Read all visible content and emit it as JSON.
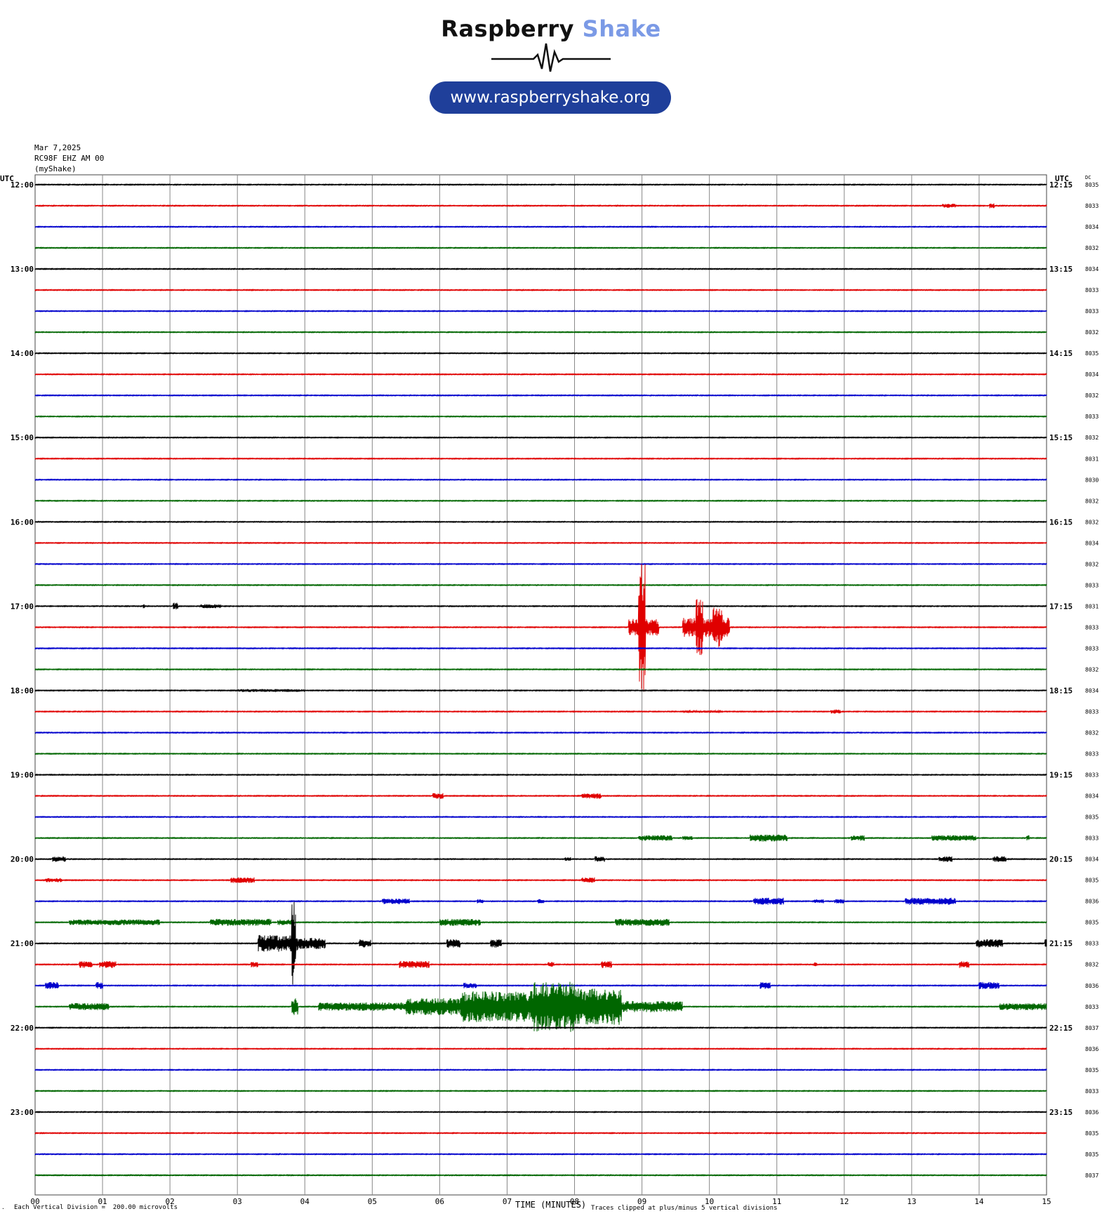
{
  "logo": {
    "brand_word1": "Raspberry",
    "brand_word2": "Shake",
    "url": "www.raspberryshake.org",
    "colors": {
      "word1": "#111111",
      "word2": "#7b9ae6",
      "badge": "#1f3f9a"
    }
  },
  "header": {
    "date": "Mar 7,2025",
    "station": "RC98F EHZ AM 00",
    "network": "(myShake)"
  },
  "footer": {
    "scale_note": "Each Vertical Division =  200.00 microvolts",
    "clip_note": "Traces clipped at plus/minus 5 vertical divisions"
  },
  "chart_data": {
    "type": "line",
    "subtype": "helicorder",
    "left_axis_title": "UTC",
    "right_axis_title": "UTC",
    "dc_title": "DC",
    "xlabel": "TIME (MINUTES)",
    "x_ticks": [
      "00",
      "01",
      "02",
      "03",
      "04",
      "05",
      "06",
      "07",
      "08",
      "09",
      "10",
      "11",
      "12",
      "13",
      "14",
      "15"
    ],
    "xlim": [
      0,
      15
    ],
    "trace_colors": [
      "#000000",
      "#e00000",
      "#0000cc",
      "#006600"
    ],
    "grid": true,
    "left_hour_labels": [
      "12:00",
      "13:00",
      "14:00",
      "15:00",
      "16:00",
      "17:00",
      "18:00",
      "19:00",
      "20:00",
      "21:00",
      "22:00",
      "23:00"
    ],
    "right_hour_labels": [
      "12:15",
      "13:15",
      "14:15",
      "15:15",
      "16:15",
      "17:15",
      "18:15",
      "19:15",
      "20:15",
      "21:15",
      "22:15",
      "23:15"
    ],
    "dc_values": [
      "8035",
      "8033",
      "8034",
      "8032",
      "8034",
      "8033",
      "8033",
      "8032",
      "8035",
      "8034",
      "8032",
      "8033",
      "8032",
      "8031",
      "8030",
      "8032",
      "8032",
      "8034",
      "8032",
      "8033",
      "8031",
      "8033",
      "8033",
      "8032",
      "8034",
      "8033",
      "8032",
      "8033",
      "8033",
      "8034",
      "8035",
      "8033",
      "8034",
      "8035",
      "8036",
      "8035",
      "8033",
      "8032",
      "8036",
      "8033",
      "8037",
      "8036",
      "8035",
      "8033",
      "8036",
      "8035",
      "8035",
      "8037"
    ],
    "noise_level": 0.6,
    "events": [
      {
        "line": 1,
        "start": 13.45,
        "end": 13.65,
        "amp": 3
      },
      {
        "line": 1,
        "start": 14.15,
        "end": 14.22,
        "amp": 4
      },
      {
        "line": 20,
        "start": 1.6,
        "end": 1.63,
        "amp": 3
      },
      {
        "line": 20,
        "start": 2.05,
        "end": 2.12,
        "amp": 5
      },
      {
        "line": 20,
        "start": 2.45,
        "end": 2.75,
        "amp": 3
      },
      {
        "line": 21,
        "start": 8.95,
        "end": 9.05,
        "amp": 95
      },
      {
        "line": 21,
        "start": 8.8,
        "end": 9.25,
        "amp": 12
      },
      {
        "line": 21,
        "start": 9.6,
        "end": 10.3,
        "amp": 14
      },
      {
        "line": 21,
        "start": 9.8,
        "end": 9.9,
        "amp": 40
      },
      {
        "line": 21,
        "start": 10.05,
        "end": 10.2,
        "amp": 30
      },
      {
        "line": 24,
        "start": 3.0,
        "end": 4.0,
        "amp": 2
      },
      {
        "line": 25,
        "start": 9.6,
        "end": 10.2,
        "amp": 1.5
      },
      {
        "line": 25,
        "start": 11.8,
        "end": 11.95,
        "amp": 3
      },
      {
        "line": 29,
        "start": 5.9,
        "end": 6.05,
        "amp": 4
      },
      {
        "line": 29,
        "start": 8.1,
        "end": 8.4,
        "amp": 4
      },
      {
        "line": 31,
        "start": 8.95,
        "end": 9.45,
        "amp": 4
      },
      {
        "line": 31,
        "start": 9.6,
        "end": 9.75,
        "amp": 3
      },
      {
        "line": 31,
        "start": 10.6,
        "end": 11.15,
        "amp": 5
      },
      {
        "line": 31,
        "start": 12.1,
        "end": 12.3,
        "amp": 4
      },
      {
        "line": 31,
        "start": 13.3,
        "end": 13.95,
        "amp": 4
      },
      {
        "line": 31,
        "start": 14.7,
        "end": 14.75,
        "amp": 4
      },
      {
        "line": 32,
        "start": 0.25,
        "end": 0.45,
        "amp": 4
      },
      {
        "line": 32,
        "start": 7.85,
        "end": 7.95,
        "amp": 3
      },
      {
        "line": 32,
        "start": 8.3,
        "end": 8.45,
        "amp": 4
      },
      {
        "line": 32,
        "start": 13.4,
        "end": 13.6,
        "amp": 4
      },
      {
        "line": 32,
        "start": 14.2,
        "end": 14.4,
        "amp": 4
      },
      {
        "line": 33,
        "start": 0.15,
        "end": 0.4,
        "amp": 3
      },
      {
        "line": 33,
        "start": 2.9,
        "end": 3.25,
        "amp": 4
      },
      {
        "line": 33,
        "start": 8.1,
        "end": 8.3,
        "amp": 4
      },
      {
        "line": 34,
        "start": 5.15,
        "end": 5.55,
        "amp": 4
      },
      {
        "line": 34,
        "start": 6.55,
        "end": 6.65,
        "amp": 3
      },
      {
        "line": 34,
        "start": 7.45,
        "end": 7.55,
        "amp": 3
      },
      {
        "line": 34,
        "start": 10.65,
        "end": 11.1,
        "amp": 5
      },
      {
        "line": 34,
        "start": 11.55,
        "end": 11.7,
        "amp": 3
      },
      {
        "line": 34,
        "start": 11.85,
        "end": 12.0,
        "amp": 3
      },
      {
        "line": 34,
        "start": 12.9,
        "end": 13.65,
        "amp": 5
      },
      {
        "line": 35,
        "start": 0.5,
        "end": 1.85,
        "amp": 4
      },
      {
        "line": 35,
        "start": 2.6,
        "end": 3.5,
        "amp": 5
      },
      {
        "line": 35,
        "start": 3.6,
        "end": 3.85,
        "amp": 4
      },
      {
        "line": 35,
        "start": 6.0,
        "end": 6.6,
        "amp": 5
      },
      {
        "line": 35,
        "start": 8.6,
        "end": 9.4,
        "amp": 5
      },
      {
        "line": 36,
        "start": 3.3,
        "end": 3.9,
        "amp": 12
      },
      {
        "line": 36,
        "start": 3.8,
        "end": 3.87,
        "amp": 60
      },
      {
        "line": 36,
        "start": 3.87,
        "end": 4.3,
        "amp": 8
      },
      {
        "line": 36,
        "start": 4.8,
        "end": 4.98,
        "amp": 6
      },
      {
        "line": 36,
        "start": 6.1,
        "end": 6.3,
        "amp": 6
      },
      {
        "line": 36,
        "start": 6.75,
        "end": 6.92,
        "amp": 6
      },
      {
        "line": 36,
        "start": 13.95,
        "end": 14.35,
        "amp": 6
      },
      {
        "line": 36,
        "start": 14.97,
        "end": 15.0,
        "amp": 6
      },
      {
        "line": 37,
        "start": 0.65,
        "end": 0.85,
        "amp": 5
      },
      {
        "line": 37,
        "start": 0.95,
        "end": 1.2,
        "amp": 5
      },
      {
        "line": 37,
        "start": 3.2,
        "end": 3.3,
        "amp": 4
      },
      {
        "line": 37,
        "start": 5.4,
        "end": 5.85,
        "amp": 5
      },
      {
        "line": 37,
        "start": 7.6,
        "end": 7.7,
        "amp": 4
      },
      {
        "line": 37,
        "start": 8.4,
        "end": 8.55,
        "amp": 5
      },
      {
        "line": 37,
        "start": 11.55,
        "end": 11.6,
        "amp": 3
      },
      {
        "line": 37,
        "start": 13.7,
        "end": 13.85,
        "amp": 5
      },
      {
        "line": 38,
        "start": 0.15,
        "end": 0.35,
        "amp": 5
      },
      {
        "line": 38,
        "start": 0.9,
        "end": 1.0,
        "amp": 5
      },
      {
        "line": 38,
        "start": 6.35,
        "end": 6.55,
        "amp": 4
      },
      {
        "line": 38,
        "start": 10.75,
        "end": 10.9,
        "amp": 5
      },
      {
        "line": 38,
        "start": 14.0,
        "end": 14.3,
        "amp": 5
      },
      {
        "line": 39,
        "start": 0.5,
        "end": 1.1,
        "amp": 5
      },
      {
        "line": 39,
        "start": 3.8,
        "end": 3.9,
        "amp": 12
      },
      {
        "line": 39,
        "start": 4.2,
        "end": 5.5,
        "amp": 6
      },
      {
        "line": 39,
        "start": 5.5,
        "end": 6.3,
        "amp": 12
      },
      {
        "line": 39,
        "start": 6.3,
        "end": 7.4,
        "amp": 22
      },
      {
        "line": 39,
        "start": 7.4,
        "end": 8.0,
        "amp": 36
      },
      {
        "line": 39,
        "start": 8.0,
        "end": 8.7,
        "amp": 26
      },
      {
        "line": 39,
        "start": 8.7,
        "end": 9.6,
        "amp": 8
      },
      {
        "line": 39,
        "start": 14.3,
        "end": 15.0,
        "amp": 5
      }
    ]
  }
}
